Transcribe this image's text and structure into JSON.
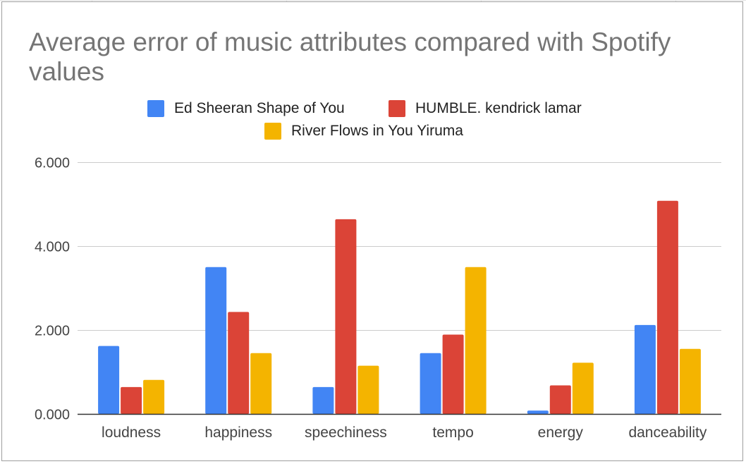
{
  "chart_data": {
    "type": "bar",
    "title": "Average error of music attributes compared with Spotify values",
    "categories": [
      "loudness",
      "happiness",
      "speechiness",
      "tempo",
      "energy",
      "danceability"
    ],
    "series": [
      {
        "name": "Ed Sheeran Shape of You",
        "color": "#4285f4",
        "values": [
          1.62,
          3.5,
          0.64,
          1.45,
          0.08,
          2.12
        ]
      },
      {
        "name": "HUMBLE. kendrick lamar",
        "color": "#db4437",
        "values": [
          0.64,
          2.43,
          4.64,
          1.89,
          0.68,
          5.08
        ]
      },
      {
        "name": "River Flows in You Yiruma",
        "color": "#f4b400",
        "values": [
          0.81,
          1.45,
          1.15,
          3.5,
          1.22,
          1.55
        ]
      }
    ],
    "yticks": [
      "0.000",
      "2.000",
      "4.000",
      "6.000"
    ],
    "ylim": [
      0,
      6
    ],
    "legend_position": "top",
    "grid": true
  }
}
